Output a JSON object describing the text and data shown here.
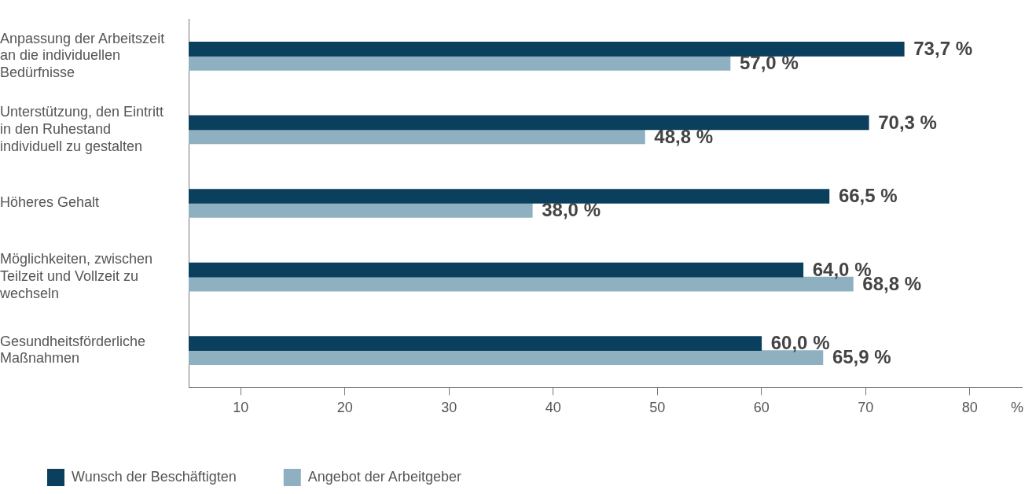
{
  "chart_data": {
    "type": "bar",
    "orientation": "horizontal",
    "xlabel": "%",
    "categories": [
      "Anpassung der Arbeitszeit an die individuellen Bedürfnisse",
      "Unterstützung, den Eintritt in den Ruhestand individuell zu gestalten",
      "Höheres Gehalt",
      "Möglichkeiten, zwischen Teilzeit und Vollzeit zu wechseln",
      "Gesundheitsförderliche Maßnahmen"
    ],
    "series": [
      {
        "name": "Wunsch der Beschäftigten",
        "color": "#0b3f5e",
        "values": [
          73.7,
          70.3,
          66.5,
          64.0,
          60.0
        ],
        "value_labels": [
          "73,7 %",
          "70,3 %",
          "66,5 %",
          "64,0 %",
          "60,0 %"
        ]
      },
      {
        "name": "Angebot der Arbeitgeber",
        "color": "#8fb0c1",
        "values": [
          57.0,
          48.8,
          38.0,
          68.8,
          65.9
        ],
        "value_labels": [
          "57,0 %",
          "48,8 %",
          "38,0 %",
          "68,8 %",
          "65,9 %"
        ]
      }
    ],
    "xlim": [
      5,
      85
    ],
    "xticks": [
      10,
      20,
      30,
      40,
      50,
      60,
      70,
      80
    ],
    "grid": false,
    "legend": "bottom left"
  }
}
